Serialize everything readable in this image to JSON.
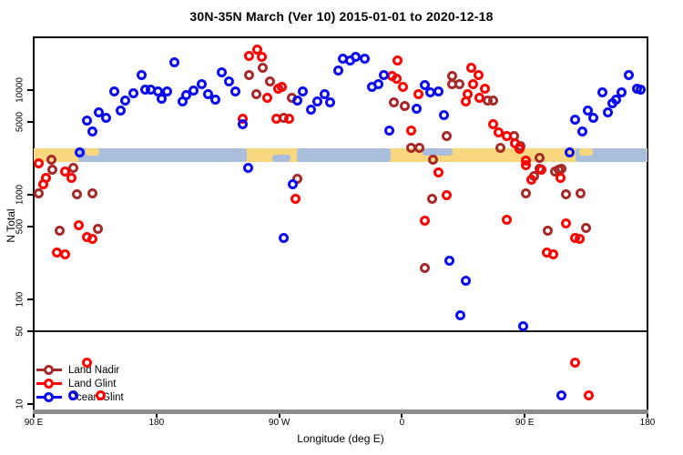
{
  "title": "30N-35N March (Ver 10)   2015-01-01 to 2020-12-18",
  "legend": {
    "items": [
      {
        "label": "Land Nadir",
        "color": "#A52A2A"
      },
      {
        "label": "Land Glint",
        "color": "#FF0000"
      },
      {
        "label": "Ocean Glint",
        "color": "#0A0AF0"
      }
    ]
  },
  "colors": {
    "land_nadir": "#A52A2A",
    "land_glint": "#FF0000",
    "ocean_glint": "#0A0AF0",
    "map_land": "#F9D77F",
    "map_ocean": "#A9BEDB",
    "axis_bar_gray": "#8B8B8B"
  },
  "chart_data": {
    "type": "scatter",
    "title": "30N-35N March (Ver 10)   2015-01-01 to 2020-12-18",
    "xlabel": "Longitude (deg E)",
    "ylabel": "N Total",
    "x_axis": {
      "range": [
        90,
        540
      ],
      "note": "longitude in deg E increasing eastward, wrapping 90E to 180 twice",
      "ticks": [
        {
          "lon": 90,
          "label": "90 E"
        },
        {
          "lon": 180,
          "label": "180"
        },
        {
          "lon": 270,
          "label": "90 W"
        },
        {
          "lon": 360,
          "label": "0"
        },
        {
          "lon": 450,
          "label": "90 E"
        },
        {
          "lon": 540,
          "label": "180"
        }
      ]
    },
    "y_axis": {
      "scale": "log10",
      "range": [
        8.5,
        32000
      ],
      "ticks": [
        {
          "value": 10000,
          "label": "10000"
        },
        {
          "value": 5000,
          "label": "5000"
        },
        {
          "value": 1000,
          "label": "1000"
        },
        {
          "value": 500,
          "label": "500"
        },
        {
          "value": 100,
          "label": "100"
        },
        {
          "value": 50,
          "label": "50"
        },
        {
          "value": 10,
          "label": "10"
        }
      ]
    },
    "reference_line_value": 50,
    "grid": false,
    "legend_position": "bottom-left",
    "map_strip": {
      "note": "mini world-map band of the 30N-35N zone drawn across the plot",
      "n_range": [
        2060,
        2780
      ],
      "land_color": "#F9D77F",
      "ocean_color": "#A9BEDB",
      "ocean_segments": [
        {
          "lon": [
            122.5,
            246
          ],
          "part": "full"
        },
        {
          "lon": [
            265,
            278
          ],
          "part": "bottom"
        },
        {
          "lon": [
            283,
            352
          ],
          "part": "full"
        },
        {
          "lon": [
            375,
            397
          ],
          "part": "top"
        },
        {
          "lon": [
            487,
            540
          ],
          "part": "full"
        }
      ],
      "land_specks": [
        {
          "lon": [
            128,
            138
          ],
          "part": "top"
        },
        {
          "lon": [
            490,
            500
          ],
          "part": "top"
        }
      ]
    },
    "series": [
      {
        "name": "Land Nadir",
        "color": "#A52A2A",
        "points": [
          [
            103,
            2180
          ],
          [
            104,
            1750
          ],
          [
            119,
            1820
          ],
          [
            94,
            1040
          ],
          [
            122,
            1020
          ],
          [
            133,
            1040
          ],
          [
            109,
            458
          ],
          [
            137,
            468
          ],
          [
            248,
            14000
          ],
          [
            258,
            16200
          ],
          [
            263,
            12200
          ],
          [
            253,
            9230
          ],
          [
            273,
            5480
          ],
          [
            279,
            8510
          ],
          [
            283,
            1410
          ],
          [
            397,
            13700
          ],
          [
            397,
            11500
          ],
          [
            402,
            11300
          ],
          [
            423,
            7870
          ],
          [
            427,
            7950
          ],
          [
            354,
            7630
          ],
          [
            362,
            7020
          ],
          [
            393,
            3670
          ],
          [
            432,
            2830
          ],
          [
            367,
            2800
          ],
          [
            373,
            2830
          ],
          [
            383,
            2180
          ],
          [
            382,
            923
          ],
          [
            377,
            201
          ],
          [
            442,
            3670
          ],
          [
            447,
            2940
          ],
          [
            461,
            2230
          ],
          [
            461,
            1780
          ],
          [
            475,
            1750
          ],
          [
            457,
            1520
          ],
          [
            472,
            1650
          ],
          [
            477,
            1780
          ],
          [
            451,
            1040
          ],
          [
            480,
            1020
          ],
          [
            491,
            1040
          ],
          [
            467,
            458
          ],
          [
            495,
            478
          ]
        ]
      },
      {
        "name": "Land Glint",
        "color": "#FF0000",
        "points": [
          [
            94,
            1980
          ],
          [
            113,
            1650
          ],
          [
            118,
            1440
          ],
          [
            99,
            1460
          ],
          [
            97,
            1250
          ],
          [
            123,
            516
          ],
          [
            129,
            398
          ],
          [
            133,
            375
          ],
          [
            107,
            283
          ],
          [
            113,
            272
          ],
          [
            248,
            21000
          ],
          [
            254,
            24200
          ],
          [
            257,
            20600
          ],
          [
            243,
            5370
          ],
          [
            268,
            5370
          ],
          [
            277,
            5370
          ],
          [
            261,
            8510
          ],
          [
            269,
            10400
          ],
          [
            272,
            10800
          ],
          [
            282,
            923
          ],
          [
            357,
            19000
          ],
          [
            353,
            13700
          ],
          [
            356,
            12800
          ],
          [
            361,
            10800
          ],
          [
            372,
            9050
          ],
          [
            367,
            4140
          ],
          [
            411,
            16200
          ],
          [
            416,
            14000
          ],
          [
            412,
            11300
          ],
          [
            421,
            10400
          ],
          [
            408,
            9230
          ],
          [
            407,
            7710
          ],
          [
            417,
            8510
          ],
          [
            427,
            4760
          ],
          [
            431,
            3980
          ],
          [
            437,
            3610
          ],
          [
            443,
            3070
          ],
          [
            387,
            1620
          ],
          [
            393,
            1000
          ],
          [
            377,
            560
          ],
          [
            437,
            571
          ],
          [
            446,
            2770
          ],
          [
            451,
            2100
          ],
          [
            451,
            1900
          ],
          [
            462,
            1750
          ],
          [
            455,
            1380
          ],
          [
            476,
            1440
          ],
          [
            480,
            527
          ],
          [
            487,
            390
          ],
          [
            490,
            375
          ],
          [
            466,
            283
          ],
          [
            471,
            272
          ],
          [
            129,
            25
          ],
          [
            487,
            25
          ],
          [
            139,
            12
          ],
          [
            497,
            12
          ]
        ]
      },
      {
        "name": "Ocean Glint",
        "color": "#0A0AF0",
        "points": [
          [
            193,
            18600
          ],
          [
            169,
            14000
          ],
          [
            149,
            9610
          ],
          [
            163,
            9410
          ],
          [
            172,
            10200
          ],
          [
            176,
            10200
          ],
          [
            181,
            9790
          ],
          [
            184,
            8350
          ],
          [
            188,
            9790
          ],
          [
            157,
            7870
          ],
          [
            199,
            7710
          ],
          [
            202,
            8870
          ],
          [
            154,
            6310
          ],
          [
            138,
            6180
          ],
          [
            143,
            5480
          ],
          [
            129,
            5160
          ],
          [
            133,
            4060
          ],
          [
            124,
            2560
          ],
          [
            207,
            10000
          ],
          [
            213,
            11300
          ],
          [
            218,
            9050
          ],
          [
            223,
            8180
          ],
          [
            228,
            14900
          ],
          [
            233,
            12200
          ],
          [
            238,
            9790
          ],
          [
            287,
            9610
          ],
          [
            283,
            7870
          ],
          [
            293,
            6440
          ],
          [
            298,
            7710
          ],
          [
            303,
            9230
          ],
          [
            307,
            7630
          ],
          [
            313,
            15500
          ],
          [
            317,
            20100
          ],
          [
            322,
            19000
          ],
          [
            243,
            4680
          ],
          [
            247,
            1820
          ],
          [
            273,
            390
          ],
          [
            280,
            1270
          ],
          [
            326,
            20600
          ],
          [
            333,
            19800
          ],
          [
            338,
            10800
          ],
          [
            343,
            11300
          ],
          [
            347,
            14000
          ],
          [
            377,
            11100
          ],
          [
            381,
            9420
          ],
          [
            387,
            9790
          ],
          [
            371,
            6700
          ],
          [
            391,
            5710
          ],
          [
            351,
            4140
          ],
          [
            395,
            236
          ],
          [
            407,
            152
          ],
          [
            403,
            71
          ],
          [
            449,
            55
          ],
          [
            526,
            14000
          ],
          [
            532,
            10400
          ],
          [
            535,
            10200
          ],
          [
            521,
            9420
          ],
          [
            507,
            9420
          ],
          [
            517,
            8030
          ],
          [
            514,
            7420
          ],
          [
            511,
            6180
          ],
          [
            496,
            6310
          ],
          [
            500,
            5480
          ],
          [
            487,
            5260
          ],
          [
            492,
            4060
          ],
          [
            483,
            2560
          ],
          [
            119,
            12
          ],
          [
            477,
            12
          ]
        ]
      }
    ]
  }
}
